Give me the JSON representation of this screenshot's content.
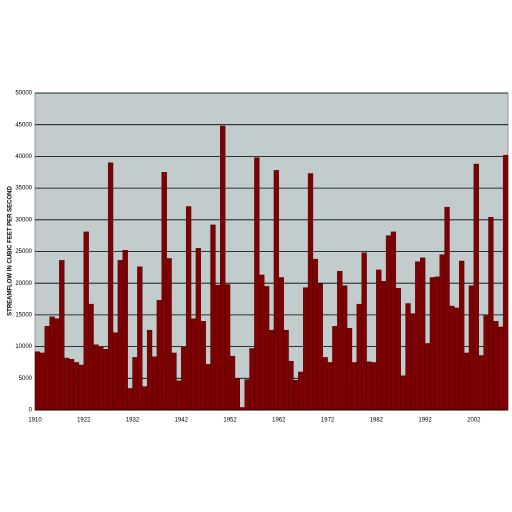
{
  "chart_data": {
    "type": "bar",
    "y_label": "STREAMFLOW IN CUBIC FEET PER SECOND",
    "categories": [
      "1910",
      null,
      null,
      null,
      null,
      null,
      null,
      null,
      null,
      null,
      "1922",
      null,
      null,
      null,
      null,
      null,
      null,
      null,
      null,
      null,
      "1932",
      null,
      null,
      null,
      null,
      null,
      null,
      null,
      null,
      null,
      "1942",
      null,
      null,
      null,
      null,
      null,
      null,
      null,
      null,
      null,
      "1952",
      null,
      null,
      null,
      null,
      null,
      null,
      null,
      null,
      null,
      "1962",
      null,
      null,
      null,
      null,
      null,
      null,
      null,
      null,
      null,
      "1972",
      null,
      null,
      null,
      null,
      null,
      null,
      null,
      null,
      null,
      "1982",
      null,
      null,
      null,
      null,
      null,
      null,
      null,
      null,
      null,
      "1992",
      null,
      null,
      null,
      null,
      null,
      null,
      null,
      null,
      null,
      "2002",
      null,
      null,
      null,
      null,
      null,
      null
    ],
    "values": [
      9200,
      9000,
      13200,
      14700,
      14400,
      23600,
      8200,
      8000,
      7500,
      7100,
      28100,
      16700,
      10300,
      10000,
      9600,
      39000,
      12200,
      23600,
      25200,
      3400,
      8300,
      22600,
      3700,
      12600,
      8400,
      17300,
      37500,
      23900,
      9000,
      4600,
      10000,
      32100,
      14400,
      25500,
      14000,
      7200,
      29200,
      19700,
      44800,
      19800,
      8500,
      5000,
      400,
      4800,
      9700,
      39800,
      21300,
      19500,
      12600,
      37800,
      20900,
      12600,
      7700,
      4700,
      6000,
      19300,
      37300,
      23800,
      19900,
      8300,
      7500,
      13200,
      21900,
      19600,
      12900,
      7500,
      16700,
      24800,
      7600,
      7500,
      22100,
      20300,
      27500,
      28100,
      19200,
      5400,
      16800,
      15200,
      23400,
      24000,
      10500,
      20900,
      21000,
      24500,
      32000,
      16400,
      16100,
      23500,
      9000,
      19600,
      38800,
      8600,
      14900,
      30400,
      14000,
      13100,
      40200
    ],
    "color": "#7f0000",
    "plot_background": "#c2cccc",
    "ylim": [
      0,
      50000
    ],
    "yticks": [
      0,
      5000,
      10000,
      15000,
      20000,
      25000,
      30000,
      35000,
      40000,
      45000,
      50000
    ],
    "grid": true
  }
}
